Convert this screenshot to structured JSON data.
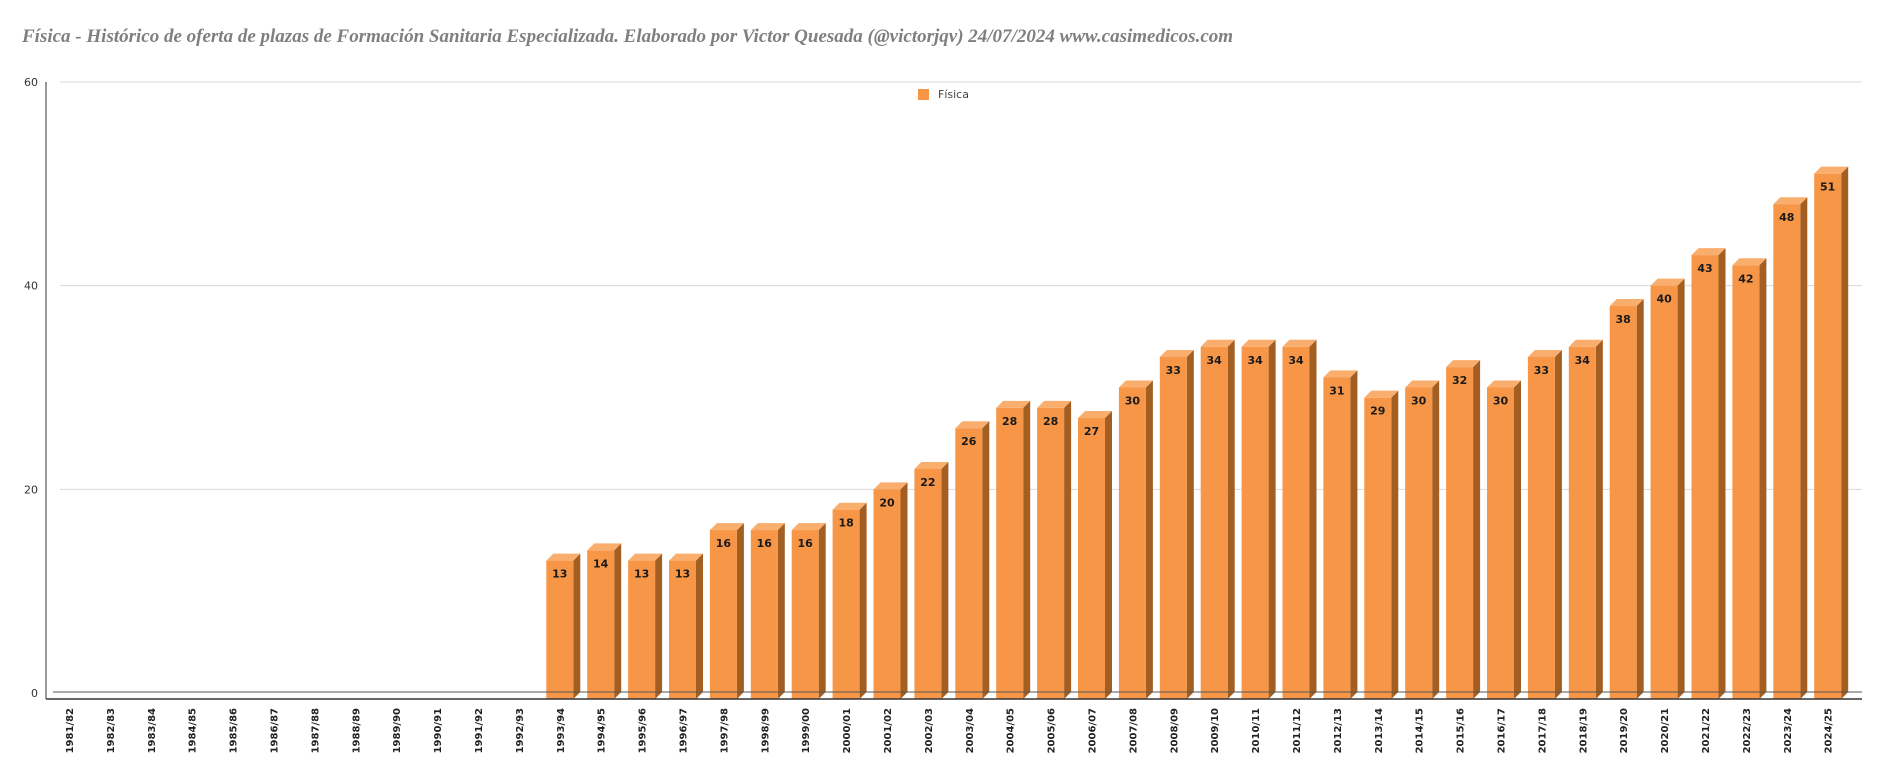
{
  "title": "Física - Histórico de oferta de plazas de Formación Sanitaria Especializada. Elaborado por Victor Quesada (@victorjqv)  24/07/2024 www.casimedicos.com",
  "colors": {
    "bar_front": "#F79646",
    "bar_top": "#FAAE6E",
    "bar_side": "#A35E22",
    "grid": "#d9d9d9",
    "axis": "#333333"
  },
  "chart_data": {
    "type": "bar",
    "title": "Física - Histórico de oferta de plazas de Formación Sanitaria Especializada. Elaborado por Victor Quesada (@victorjqv)  24/07/2024 www.casimedicos.com",
    "xlabel": "",
    "ylabel": "",
    "ylim": [
      0,
      60
    ],
    "yticks": [
      0,
      20,
      40,
      60
    ],
    "grid": true,
    "legend": {
      "position": "top",
      "entries": [
        "Física"
      ]
    },
    "categories": [
      "1981/82",
      "1982/83",
      "1983/84",
      "1984/85",
      "1985/86",
      "1986/87",
      "1987/88",
      "1988/89",
      "1989/90",
      "1990/91",
      "1991/92",
      "1992/93",
      "1993/94",
      "1994/95",
      "1995/96",
      "1996/97",
      "1997/98",
      "1998/99",
      "1999/00",
      "2000/01",
      "2001/02",
      "2002/03",
      "2003/04",
      "2004/05",
      "2005/06",
      "2006/07",
      "2007/08",
      "2008/09",
      "2009/10",
      "2010/11",
      "2011/12",
      "2012/13",
      "2013/14",
      "2014/15",
      "2015/16",
      "2016/17",
      "2017/18",
      "2018/19",
      "2019/20",
      "2020/21",
      "2021/22",
      "2022/23",
      "2023/24",
      "2024/25"
    ],
    "series": [
      {
        "name": "Física",
        "values": [
          null,
          null,
          null,
          null,
          null,
          null,
          null,
          null,
          null,
          null,
          null,
          null,
          13,
          14,
          13,
          13,
          16,
          16,
          16,
          18,
          20,
          22,
          26,
          28,
          28,
          27,
          30,
          33,
          34,
          34,
          34,
          31,
          29,
          30,
          32,
          30,
          33,
          34,
          38,
          40,
          43,
          42,
          48,
          51
        ]
      }
    ]
  }
}
